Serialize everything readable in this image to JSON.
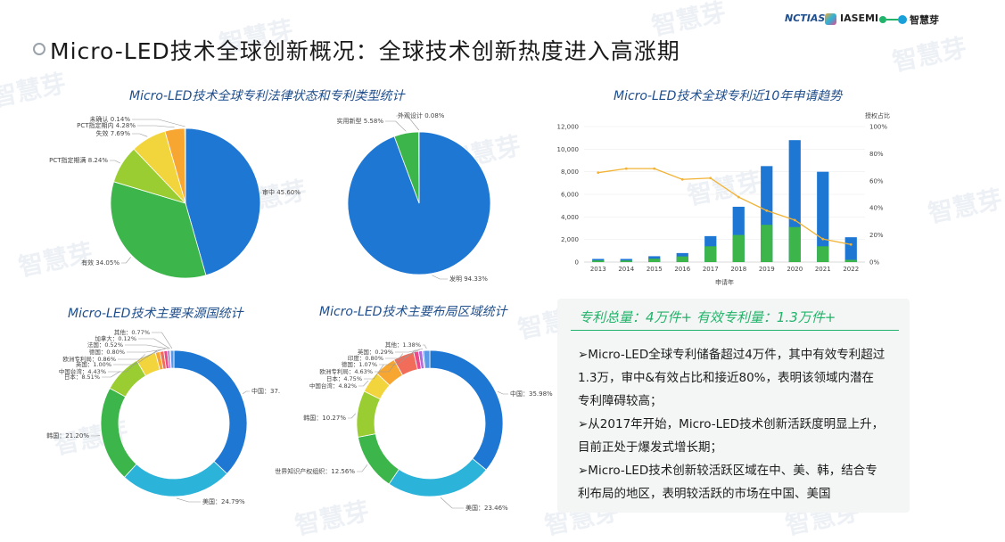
{
  "header": {
    "title": "Micro-LED技术全球创新概况：全球技术创新热度进入高涨期",
    "logos": [
      "NCTIAS",
      "IASEMI",
      "智慧芽"
    ],
    "watermark": "智慧芽"
  },
  "colors": {
    "blue": "#1f77d4",
    "green": "#3cb54a",
    "lime": "#9acd32",
    "yellow": "#f2d43c",
    "orange": "#f7a631",
    "cyan": "#2bb3d9",
    "line": "#f2b233",
    "accent": "#22b36a"
  },
  "callout": {
    "headline": "专利总量：4万件+ 有效专利量：1.3万件+",
    "bullets": [
      "➢Micro-LED全球专利储备超过4万件，其中有效专利超过1.3万，审中&有效占比和接近80%，表明该领域内潜在专利障碍较高；",
      "➢从2017年开始，Micro-LED技术创新活跃度明显上升，目前正处于爆发式增长期；",
      "➢Micro-LED技术创新较活跃区域在中、美、韩，结合专利布局的地区，表明较活跃的市场在中国、美国"
    ]
  },
  "chart_data": [
    {
      "type": "pie",
      "title": "Micro-LED技术全球专利法律状态和专利类型统计",
      "slices": [
        {
          "label": "审中",
          "value": 45.6,
          "text": "审中 45.60%",
          "color": "#1f77d4"
        },
        {
          "label": "有效",
          "value": 34.05,
          "text": "有效 34.05%",
          "color": "#3cb54a"
        },
        {
          "label": "PCT指定期满",
          "value": 8.24,
          "text": "PCT指定期满 8.24%",
          "color": "#9acd32"
        },
        {
          "label": "失效",
          "value": 7.69,
          "text": "失效 7.69%",
          "color": "#f2d43c"
        },
        {
          "label": "PCT指定期内",
          "value": 4.28,
          "text": "PCT指定期内 4.28%",
          "color": "#f7a631"
        },
        {
          "label": "未确认",
          "value": 0.14,
          "text": "未确认 0.14%",
          "color": "#e8e8e8"
        }
      ]
    },
    {
      "type": "pie",
      "title": "",
      "slices": [
        {
          "label": "发明",
          "value": 94.33,
          "text": "发明 94.33%",
          "color": "#1f77d4"
        },
        {
          "label": "实用新型",
          "value": 5.58,
          "text": "实用新型 5.58%",
          "color": "#3cb54a"
        },
        {
          "label": "外观设计",
          "value": 0.08,
          "text": "外观设计 0.08%",
          "color": "#f2d43c"
        }
      ]
    },
    {
      "type": "bar",
      "title": "Micro-LED技术全球专利近10年申请趋势",
      "xlabel": "申请年",
      "ylabel_right": "授权占比",
      "categories": [
        "2013",
        "2014",
        "2015",
        "2016",
        "2017",
        "2018",
        "2019",
        "2020",
        "2021",
        "2022"
      ],
      "series": [
        {
          "values": [
            280,
            280,
            520,
            800,
            2300,
            4900,
            8500,
            10800,
            8000,
            2200
          ],
          "color": "#1f77d4"
        },
        {
          "values": [
            150,
            140,
            300,
            500,
            1400,
            2400,
            3300,
            3100,
            1400,
            200
          ],
          "color": "#3cb54a"
        },
        {
          "values": [
            66,
            69,
            69,
            61,
            62,
            48,
            38,
            31,
            17,
            13
          ],
          "color": "#f2b233",
          "axis": "right",
          "kind": "line"
        }
      ],
      "yticks": [
        "0",
        "2,000",
        "4,000",
        "6,000",
        "8,000",
        "10,000",
        "12,000"
      ],
      "ylim": [
        0,
        12000
      ],
      "y2ticks": [
        "0%",
        "20%",
        "40%",
        "60%",
        "80%",
        "100%"
      ],
      "y2lim": [
        0,
        100
      ]
    },
    {
      "type": "pie",
      "title": "Micro-LED技术主要来源国统计",
      "slices": [
        {
          "label": "中国",
          "value": 37.1,
          "text": "中国：37.",
          "color": "#1f77d4"
        },
        {
          "label": "美国",
          "value": 24.79,
          "text": "美国：24.79%",
          "color": "#2bb3d9"
        },
        {
          "label": "韩国",
          "value": 21.2,
          "text": "韩国：21.20%",
          "color": "#3cb54a"
        },
        {
          "label": "日本",
          "value": 8.51,
          "text": "日本：8.51%",
          "color": "#9acd32"
        },
        {
          "label": "中国台湾",
          "value": 4.43,
          "text": "中国台湾：4.43%",
          "color": "#f2d43c"
        },
        {
          "label": "英国",
          "value": 1.0,
          "text": "英国：1.00%",
          "color": "#f7a631"
        },
        {
          "label": "欧洲专利局",
          "value": 0.86,
          "text": "欧洲专利局：0.86%",
          "color": "#f26c5a"
        },
        {
          "label": "德国",
          "value": 0.8,
          "text": "德国：0.80%",
          "color": "#e84a8a"
        },
        {
          "label": "法国",
          "value": 0.52,
          "text": "法国：0.52%",
          "color": "#b06ad8"
        },
        {
          "label": "加拿大",
          "value": 0.12,
          "text": "加拿大：0.12%",
          "color": "#7f7fe0"
        },
        {
          "label": "其他",
          "value": 0.77,
          "text": "其他：0.77%",
          "color": "#5a9be8"
        }
      ]
    },
    {
      "type": "pie",
      "title": "Micro-LED技术主要布局区域统计",
      "slices": [
        {
          "label": "中国",
          "value": 35.98,
          "text": "中国：35.98%",
          "color": "#1f77d4"
        },
        {
          "label": "美国",
          "value": 23.46,
          "text": "美国：23.46%",
          "color": "#2bb3d9"
        },
        {
          "label": "世界知识产权组织",
          "value": 12.56,
          "text": "世界知识产权组织：12.56%",
          "color": "#3cb54a"
        },
        {
          "label": "韩国",
          "value": 10.27,
          "text": "韩国：10.27%",
          "color": "#9acd32"
        },
        {
          "label": "中国台湾",
          "value": 4.82,
          "text": "中国台湾：4.82%",
          "color": "#f2d43c"
        },
        {
          "label": "日本",
          "value": 4.75,
          "text": "日本：4.75%",
          "color": "#f7a631"
        },
        {
          "label": "欧洲专利局",
          "value": 4.63,
          "text": "欧洲专利局：4.63%",
          "color": "#f26c5a"
        },
        {
          "label": "德国",
          "value": 1.07,
          "text": "德国：1.07%",
          "color": "#e84a8a"
        },
        {
          "label": "印度",
          "value": 0.8,
          "text": "印度：0.80%",
          "color": "#b06ad8"
        },
        {
          "label": "英国",
          "value": 0.29,
          "text": "英国：0.29%",
          "color": "#7f7fe0"
        },
        {
          "label": "其他",
          "value": 1.38,
          "text": "其他：1.38%",
          "color": "#5a9be8"
        }
      ]
    }
  ]
}
